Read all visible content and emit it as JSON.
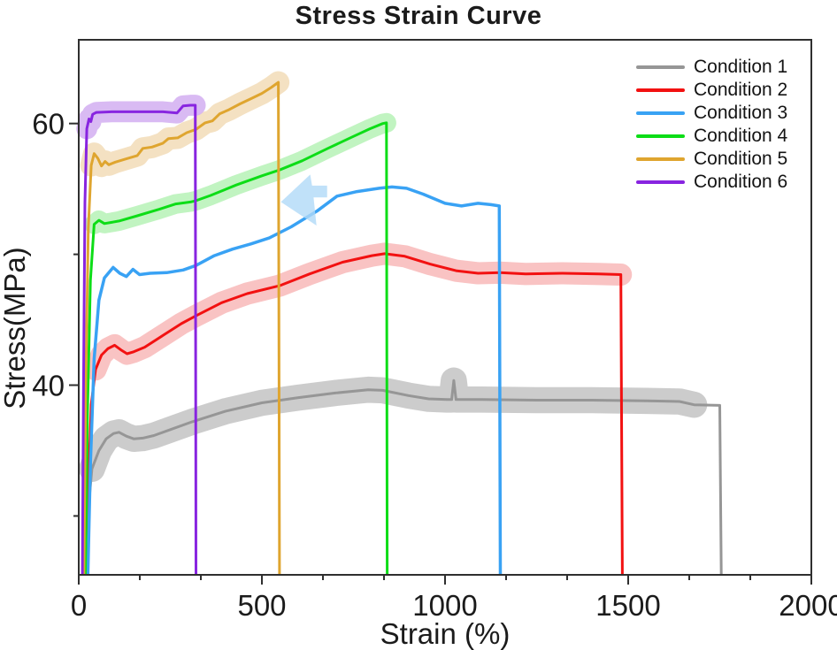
{
  "title": "Stress Strain Curve",
  "axes": {
    "x": {
      "label": "Strain (%)",
      "major_values": [
        0,
        500,
        1000,
        1500,
        2000
      ],
      "major_labels": [
        "0",
        "500",
        "1000",
        "1500",
        "2000"
      ],
      "minor_divisions": 3
    },
    "y": {
      "label": "Stress(MPa)",
      "major_values": [
        40,
        60
      ],
      "major_labels": [
        "40",
        "60"
      ],
      "minor_values": [
        30,
        50
      ]
    }
  },
  "legend": {
    "position": "top-right",
    "items": [
      "Condition 1",
      "Condition 2",
      "Condition 3",
      "Condition 4",
      "Condition 5",
      "Condition 6"
    ]
  },
  "chart_data": {
    "type": "line",
    "title": "Stress Strain Curve",
    "xlabel": "Strain (%)",
    "ylabel": "Stress(MPa)",
    "xlim": [
      0,
      2000
    ],
    "ylim": [
      25.5,
      66.4
    ],
    "grid": false,
    "legend_position": "top-right",
    "series": [
      {
        "name": "Condition 1",
        "color": "#969696",
        "band_color": "#c7c7c7",
        "band_halfwidth_mpa": 1.0,
        "band_skip": 2,
        "band_trim": 1,
        "fracture_strain": 1754,
        "points": [
          [
            20,
            25.5
          ],
          [
            26,
            30.5
          ],
          [
            36,
            33.6
          ],
          [
            55,
            35.0
          ],
          [
            75,
            35.9
          ],
          [
            95,
            36.3
          ],
          [
            110,
            36.4
          ],
          [
            130,
            36.1
          ],
          [
            150,
            35.9
          ],
          [
            175,
            35.95
          ],
          [
            205,
            36.15
          ],
          [
            250,
            36.6
          ],
          [
            310,
            37.2
          ],
          [
            400,
            38.0
          ],
          [
            500,
            38.65
          ],
          [
            600,
            39.05
          ],
          [
            700,
            39.4
          ],
          [
            790,
            39.65
          ],
          [
            830,
            39.6
          ],
          [
            900,
            39.2
          ],
          [
            955,
            38.95
          ],
          [
            1005,
            38.9
          ],
          [
            1018,
            38.9
          ],
          [
            1024,
            40.35
          ],
          [
            1030,
            38.9
          ],
          [
            1100,
            38.9
          ],
          [
            1250,
            38.85
          ],
          [
            1400,
            38.85
          ],
          [
            1550,
            38.8
          ],
          [
            1640,
            38.75
          ],
          [
            1680,
            38.5
          ],
          [
            1750,
            38.45
          ]
        ]
      },
      {
        "name": "Condition 2",
        "color": "#f21111",
        "band_color": "#f8bcbc",
        "band_halfwidth_mpa": 0.85,
        "band_skip": 3,
        "band_trim": 0,
        "fracture_strain": 1484,
        "points": [
          [
            20,
            25.5
          ],
          [
            26,
            32
          ],
          [
            34,
            38.5
          ],
          [
            46,
            41.2
          ],
          [
            62,
            42.3
          ],
          [
            80,
            42.8
          ],
          [
            98,
            43.05
          ],
          [
            115,
            42.7
          ],
          [
            132,
            42.4
          ],
          [
            150,
            42.55
          ],
          [
            180,
            42.9
          ],
          [
            230,
            43.8
          ],
          [
            280,
            44.7
          ],
          [
            320,
            45.3
          ],
          [
            390,
            46.3
          ],
          [
            460,
            47.0
          ],
          [
            548,
            47.6
          ],
          [
            630,
            48.5
          ],
          [
            720,
            49.4
          ],
          [
            800,
            49.9
          ],
          [
            835,
            50.05
          ],
          [
            890,
            49.85
          ],
          [
            960,
            49.25
          ],
          [
            1030,
            48.75
          ],
          [
            1090,
            48.55
          ],
          [
            1150,
            48.6
          ],
          [
            1220,
            48.5
          ],
          [
            1320,
            48.55
          ],
          [
            1420,
            48.5
          ],
          [
            1480,
            48.45
          ]
        ]
      },
      {
        "name": "Condition 3",
        "color": "#39a2f4",
        "band_color": "#bfe0fa",
        "band_halfwidth_mpa": 0,
        "band_skip": 0,
        "band_trim": 0,
        "fracture_strain": 1151,
        "points": [
          [
            25,
            25.5
          ],
          [
            32,
            34
          ],
          [
            42,
            42
          ],
          [
            55,
            46.5
          ],
          [
            70,
            48.2
          ],
          [
            94,
            49.0
          ],
          [
            112,
            48.55
          ],
          [
            130,
            48.3
          ],
          [
            148,
            48.85
          ],
          [
            166,
            48.45
          ],
          [
            195,
            48.55
          ],
          [
            240,
            48.6
          ],
          [
            285,
            48.8
          ],
          [
            320,
            49.15
          ],
          [
            370,
            49.9
          ],
          [
            420,
            50.4
          ],
          [
            470,
            50.8
          ],
          [
            520,
            51.25
          ],
          [
            580,
            52.1
          ],
          [
            650,
            53.3
          ],
          [
            705,
            54.45
          ],
          [
            760,
            54.8
          ],
          [
            820,
            55.05
          ],
          [
            855,
            55.15
          ],
          [
            895,
            55.05
          ],
          [
            940,
            54.6
          ],
          [
            1000,
            53.9
          ],
          [
            1045,
            53.7
          ],
          [
            1090,
            53.9
          ],
          [
            1125,
            53.8
          ],
          [
            1148,
            53.7
          ]
        ]
      },
      {
        "name": "Condition 4",
        "color": "#0ddd17",
        "band_color": "#baf3ba",
        "band_halfwidth_mpa": 0.75,
        "band_skip": 3,
        "band_trim": 0,
        "fracture_strain": 842,
        "points": [
          [
            18,
            25.5
          ],
          [
            24,
            38
          ],
          [
            32,
            48
          ],
          [
            42,
            52.3
          ],
          [
            55,
            52.6
          ],
          [
            70,
            52.35
          ],
          [
            90,
            52.45
          ],
          [
            110,
            52.55
          ],
          [
            160,
            52.95
          ],
          [
            220,
            53.45
          ],
          [
            265,
            53.85
          ],
          [
            305,
            54.0
          ],
          [
            320,
            54.1
          ],
          [
            360,
            54.5
          ],
          [
            430,
            55.3
          ],
          [
            500,
            56.0
          ],
          [
            548,
            56.45
          ],
          [
            610,
            57.15
          ],
          [
            680,
            58.1
          ],
          [
            745,
            58.95
          ],
          [
            795,
            59.6
          ],
          [
            830,
            60.0
          ],
          [
            840,
            60.05
          ]
        ]
      },
      {
        "name": "Condition 5",
        "color": "#dfa52f",
        "band_color": "#f3debb",
        "band_halfwidth_mpa": 0.85,
        "band_skip": 3,
        "band_trim": 0,
        "fracture_strain": 548,
        "points": [
          [
            14,
            25.5
          ],
          [
            19,
            40
          ],
          [
            26,
            52
          ],
          [
            34,
            56.8
          ],
          [
            42,
            57.7
          ],
          [
            52,
            57.35
          ],
          [
            62,
            56.75
          ],
          [
            72,
            57.1
          ],
          [
            82,
            56.85
          ],
          [
            100,
            57.05
          ],
          [
            130,
            57.3
          ],
          [
            160,
            57.55
          ],
          [
            175,
            58.1
          ],
          [
            200,
            58.2
          ],
          [
            230,
            58.5
          ],
          [
            245,
            58.85
          ],
          [
            270,
            58.9
          ],
          [
            295,
            59.3
          ],
          [
            320,
            59.55
          ],
          [
            345,
            60.05
          ],
          [
            365,
            60.2
          ],
          [
            385,
            60.75
          ],
          [
            410,
            61.05
          ],
          [
            440,
            61.5
          ],
          [
            470,
            61.9
          ],
          [
            500,
            62.3
          ],
          [
            525,
            62.75
          ],
          [
            545,
            63.15
          ]
        ]
      },
      {
        "name": "Condition 6",
        "color": "#8824e0",
        "band_color": "#d5b3f2",
        "band_halfwidth_mpa": 0.8,
        "band_skip": 3,
        "band_trim": 0,
        "fracture_strain": 320,
        "points": [
          [
            10,
            25.5
          ],
          [
            13,
            40
          ],
          [
            17,
            54
          ],
          [
            22,
            59.6
          ],
          [
            28,
            60.35
          ],
          [
            33,
            60.15
          ],
          [
            38,
            60.7
          ],
          [
            48,
            60.85
          ],
          [
            90,
            60.9
          ],
          [
            150,
            60.9
          ],
          [
            230,
            60.9
          ],
          [
            268,
            60.8
          ],
          [
            285,
            61.35
          ],
          [
            305,
            61.4
          ],
          [
            318,
            61.4
          ]
        ]
      }
    ],
    "annotation": {
      "type": "left-arrow",
      "color": "#b0d9f7",
      "opacity": 0.8,
      "points": [
        [
          552,
          54.0
        ],
        [
          632,
          56.1
        ],
        [
          637,
          55.25
        ],
        [
          678,
          55.25
        ],
        [
          678,
          54.35
        ],
        [
          641,
          54.35
        ],
        [
          649,
          52.2
        ]
      ]
    }
  }
}
